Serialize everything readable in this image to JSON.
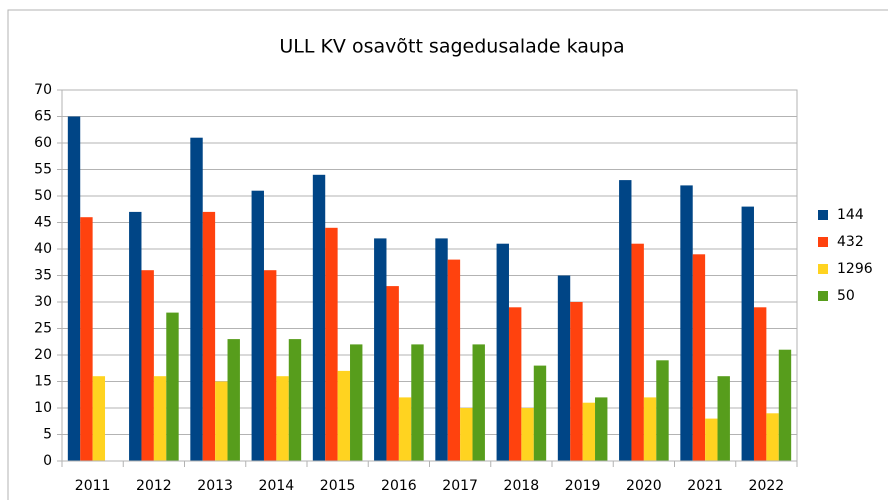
{
  "chart_data": {
    "type": "bar",
    "title": "ULL KV osavõtt sagedusalade kaupa",
    "categories": [
      "2011",
      "2012",
      "2013",
      "2014",
      "2015",
      "2016",
      "2017",
      "2018",
      "2019",
      "2020",
      "2021",
      "2022"
    ],
    "series": [
      {
        "name": "144",
        "color": "#004586",
        "values": [
          65,
          47,
          61,
          51,
          54,
          42,
          42,
          41,
          35,
          53,
          52,
          48
        ]
      },
      {
        "name": "432",
        "color": "#ff420e",
        "values": [
          46,
          36,
          47,
          36,
          44,
          33,
          38,
          29,
          30,
          41,
          39,
          29
        ]
      },
      {
        "name": "1296",
        "color": "#ffd320",
        "values": [
          16,
          16,
          15,
          16,
          17,
          12,
          10,
          10,
          11,
          12,
          8,
          9
        ]
      },
      {
        "name": "50",
        "color": "#579d1c",
        "values": [
          null,
          28,
          23,
          23,
          22,
          22,
          22,
          18,
          12,
          19,
          16,
          21
        ]
      }
    ],
    "ylim": [
      0,
      70
    ],
    "yticks": [
      0,
      5,
      10,
      15,
      20,
      25,
      30,
      35,
      40,
      45,
      50,
      55,
      60,
      65,
      70
    ],
    "grid": true,
    "legend": "right"
  }
}
